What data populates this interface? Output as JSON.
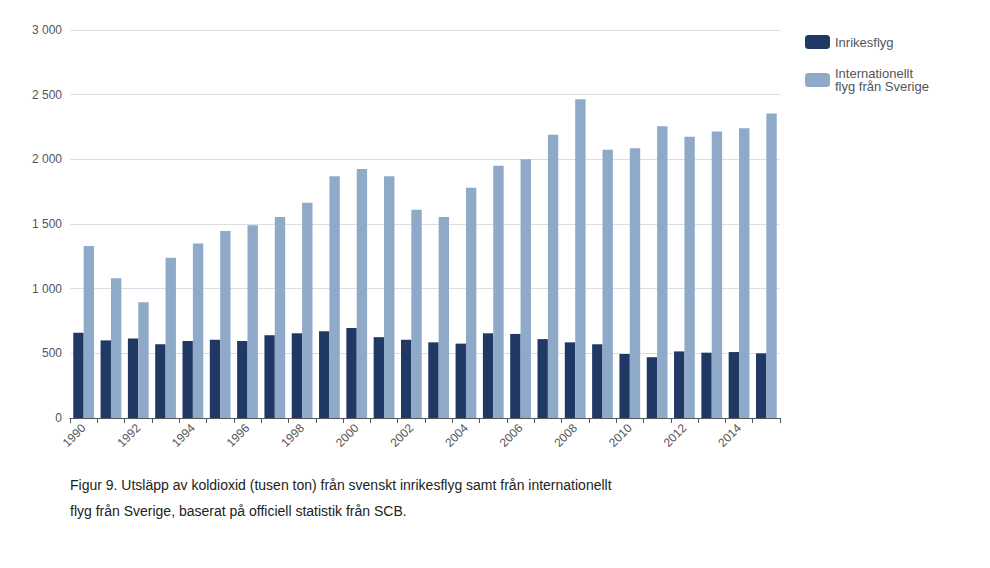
{
  "chart_data": {
    "type": "bar",
    "categories": [
      "1990",
      null,
      "1992",
      null,
      "1994",
      null,
      "1996",
      null,
      "1998",
      null,
      "2000",
      null,
      "2002",
      null,
      "2004",
      null,
      "2006",
      null,
      "2008",
      null,
      "2010",
      null,
      "2012",
      null,
      "2014",
      null
    ],
    "series": [
      {
        "name": "Inrikesflyg",
        "color": "#1F3864",
        "values": [
          660,
          600,
          615,
          570,
          595,
          605,
          595,
          640,
          655,
          670,
          695,
          625,
          605,
          585,
          575,
          655,
          650,
          610,
          585,
          570,
          495,
          470,
          515,
          505,
          510,
          500
        ]
      },
      {
        "name": "Internationellt\nflyg från Sverige",
        "color": "#8FA9C8",
        "values": [
          1330,
          1080,
          895,
          1240,
          1350,
          1445,
          1490,
          1555,
          1665,
          1870,
          1925,
          1870,
          1610,
          1555,
          1780,
          1950,
          2000,
          2190,
          2465,
          2075,
          2085,
          2255,
          2175,
          2215,
          2240,
          2355
        ]
      }
    ],
    "ylim": [
      0,
      3000
    ],
    "yticks": [
      0,
      500,
      {
        "value": 1000,
        "label": "1 000"
      },
      {
        "value": 1500,
        "label": "1 500"
      },
      {
        "value": 2000,
        "label": "2 000"
      },
      {
        "value": 2500,
        "label": "2 500"
      },
      {
        "value": 3000,
        "label": "3 000"
      }
    ],
    "grid": true,
    "legend": "right",
    "annotations": [
      "Figur 9. Utsläpp av koldioxid (tusen ton) från svenskt inrikesflyg samt från internationellt",
      "flyg från Sverige, baserat på officiell statistik från SCB."
    ]
  }
}
